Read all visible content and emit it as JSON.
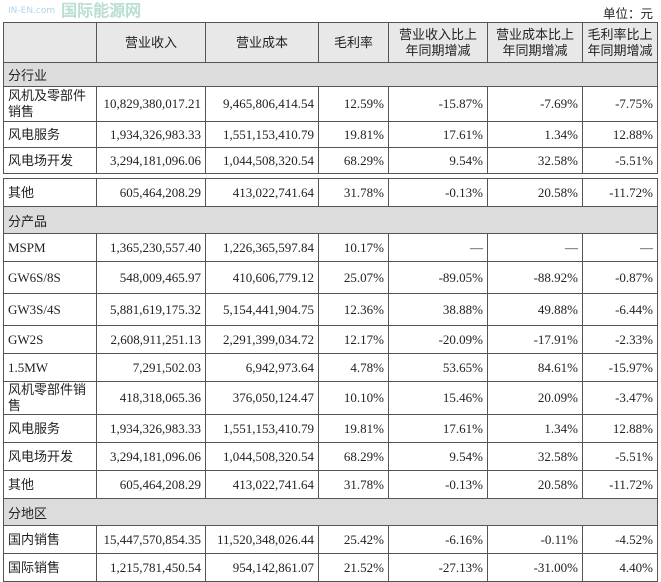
{
  "unit": "单位：元",
  "headers": [
    "",
    "营业收入",
    "营业成本",
    "毛利率",
    "营业收入比上年同期增减",
    "营业成本比上年同期增减",
    "毛利率比上年同期增减"
  ],
  "table1": [
    {
      "section": "分行业"
    },
    {
      "cells": [
        "风机及零部件销售",
        "10,829,380,017.21",
        "9,465,806,414.54",
        "12.59%",
        "-15.87%",
        "-7.69%",
        "-7.75%"
      ]
    },
    {
      "cells": [
        "风电服务",
        "1,934,326,983.33",
        "1,551,153,410.79",
        "19.81%",
        "17.61%",
        "1.34%",
        "12.88%"
      ]
    },
    {
      "cells": [
        "风电场开发",
        "3,294,181,096.06",
        "1,044,508,320.54",
        "68.29%",
        "9.54%",
        "32.58%",
        "-5.51%"
      ]
    }
  ],
  "table2": [
    {
      "cells": [
        "其他",
        "605,464,208.29",
        "413,022,741.64",
        "31.78%",
        "-0.13%",
        "20.58%",
        "-11.72%"
      ]
    },
    {
      "section": "分产品"
    },
    {
      "cells": [
        "MSPM",
        "1,365,230,557.40",
        "1,226,365,597.84",
        "10.17%",
        "—",
        "—",
        "—"
      ]
    },
    {
      "cells": [
        "GW6S/8S",
        "548,009,465.97",
        "410,606,779.12",
        "25.07%",
        "-89.05%",
        "-88.92%",
        "-0.87%"
      ]
    },
    {
      "cells": [
        "GW3S/4S",
        "5,881,619,175.32",
        "5,154,441,904.75",
        "12.36%",
        "38.88%",
        "49.88%",
        "-6.44%"
      ]
    },
    {
      "cells": [
        "GW2S",
        "2,608,911,251.13",
        "2,291,399,034.72",
        "12.17%",
        "-20.09%",
        "-17.91%",
        "-2.33%"
      ]
    },
    {
      "cells": [
        "1.5MW",
        "7,291,502.03",
        "6,942,973.64",
        "4.78%",
        "53.65%",
        "84.61%",
        "-15.97%"
      ]
    },
    {
      "cells": [
        "风机零部件销售",
        "418,318,065.36",
        "376,050,124.47",
        "10.10%",
        "15.46%",
        "20.09%",
        "-3.47%"
      ]
    },
    {
      "cells": [
        "风电服务",
        "1,934,326,983.33",
        "1,551,153,410.79",
        "19.81%",
        "17.61%",
        "1.34%",
        "12.88%"
      ]
    },
    {
      "cells": [
        "风电场开发",
        "3,294,181,096.06",
        "1,044,508,320.54",
        "68.29%",
        "9.54%",
        "32.58%",
        "-5.51%"
      ]
    },
    {
      "cells": [
        "其他",
        "605,464,208.29",
        "413,022,741.64",
        "31.78%",
        "-0.13%",
        "20.58%",
        "-11.72%"
      ]
    },
    {
      "section": "分地区"
    },
    {
      "cells": [
        "国内销售",
        "15,447,570,854.35",
        "11,520,348,026.44",
        "25.42%",
        "-6.16%",
        "-0.11%",
        "-4.52%"
      ]
    },
    {
      "cells": [
        "国际销售",
        "1,215,781,450.54",
        "954,142,861.07",
        "21.52%",
        "-27.13%",
        "-31.00%",
        "4.40%"
      ]
    }
  ],
  "watermark": {
    "domain": "IN-EN.com",
    "name": "国际能源网"
  }
}
